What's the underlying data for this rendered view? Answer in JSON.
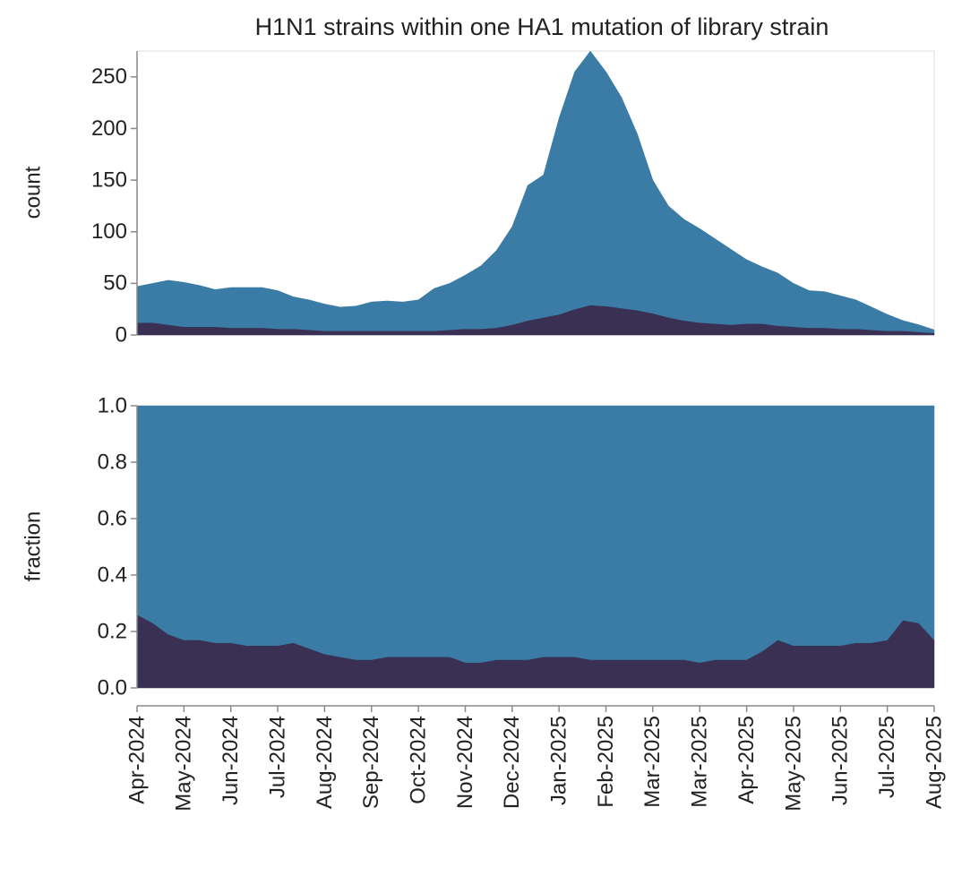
{
  "chart_data": [
    {
      "type": "area",
      "stacked": true,
      "title": "H1N1 strains within one HA1 mutation of library strain",
      "ylabel": "count",
      "ylim": [
        0,
        275
      ],
      "yticks": [
        0,
        50,
        100,
        150,
        200,
        250
      ],
      "series": [
        {
          "color": "#3a3054",
          "values": [
            12,
            12,
            10,
            8,
            8,
            8,
            7,
            7,
            7,
            6,
            6,
            5,
            4,
            4,
            4,
            4,
            4,
            4,
            4,
            4,
            5,
            6,
            6,
            7,
            10,
            14,
            17,
            20,
            25,
            29,
            28,
            26,
            24,
            21,
            17,
            14,
            12,
            11,
            10,
            11,
            11,
            9,
            8,
            7,
            7,
            6,
            6,
            5,
            4,
            4,
            3,
            2
          ]
        },
        {
          "color": "#3a7ca5",
          "values": [
            35,
            38,
            43,
            43,
            40,
            36,
            39,
            39,
            39,
            37,
            31,
            29,
            26,
            23,
            24,
            28,
            29,
            28,
            30,
            41,
            45,
            52,
            61,
            75,
            95,
            131,
            138,
            190,
            230,
            246,
            227,
            204,
            171,
            129,
            108,
            98,
            91,
            82,
            73,
            62,
            55,
            51,
            42,
            36,
            35,
            32,
            28,
            22,
            16,
            10,
            7,
            3
          ]
        }
      ]
    },
    {
      "type": "area",
      "stacked": true,
      "ylabel": "fraction",
      "ylim": [
        0,
        1
      ],
      "yticks": [
        {
          "value": 0,
          "label": "0.0"
        },
        0.2,
        0.4,
        0.6,
        0.8,
        {
          "value": 1,
          "label": "1.0"
        }
      ],
      "categories": [
        "Apr-2024",
        null,
        null,
        "May-2024",
        null,
        null,
        "Jun-2024",
        null,
        null,
        "Jul-2024",
        null,
        null,
        "Aug-2024",
        null,
        null,
        "Sep-2024",
        null,
        null,
        "Oct-2024",
        null,
        null,
        "Nov-2024",
        null,
        null,
        "Dec-2024",
        null,
        null,
        "Jan-2025",
        null,
        null,
        "Feb-2025",
        null,
        null,
        "Mar-2025",
        null,
        null,
        "Mar-2025",
        null,
        null,
        "Apr-2025",
        null,
        null,
        "May-2025",
        null,
        null,
        "Jun-2025",
        null,
        null,
        "Jul-2025",
        null,
        null,
        "Aug-2025"
      ],
      "series": [
        {
          "color": "#3a3054",
          "values": [
            0.26,
            0.23,
            0.19,
            0.17,
            0.17,
            0.16,
            0.16,
            0.15,
            0.15,
            0.15,
            0.16,
            0.14,
            0.12,
            0.11,
            0.1,
            0.1,
            0.11,
            0.11,
            0.11,
            0.11,
            0.11,
            0.09,
            0.09,
            0.1,
            0.1,
            0.1,
            0.11,
            0.11,
            0.11,
            0.1,
            0.1,
            0.1,
            0.1,
            0.1,
            0.1,
            0.1,
            0.09,
            0.1,
            0.1,
            0.1,
            0.13,
            0.17,
            0.15,
            0.15,
            0.15,
            0.15,
            0.16,
            0.16,
            0.17,
            0.24,
            0.23,
            0.17
          ]
        },
        {
          "color": "#3a7ca5",
          "values": [
            0.74,
            0.77,
            0.81,
            0.83,
            0.83,
            0.84,
            0.84,
            0.85,
            0.85,
            0.85,
            0.84,
            0.86,
            0.88,
            0.89,
            0.9,
            0.9,
            0.89,
            0.89,
            0.89,
            0.89,
            0.89,
            0.91,
            0.91,
            0.9,
            0.9,
            0.9,
            0.89,
            0.89,
            0.89,
            0.9,
            0.9,
            0.9,
            0.9,
            0.9,
            0.9,
            0.9,
            0.91,
            0.9,
            0.9,
            0.9,
            0.87,
            0.83,
            0.85,
            0.85,
            0.85,
            0.85,
            0.84,
            0.84,
            0.83,
            0.76,
            0.77,
            0.83
          ]
        }
      ]
    }
  ]
}
